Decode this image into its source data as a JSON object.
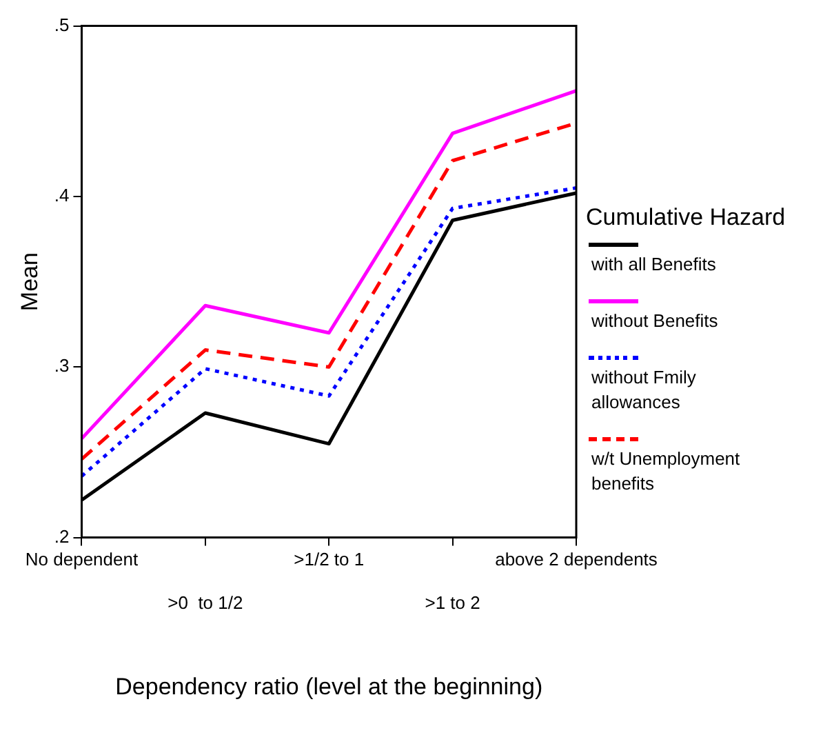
{
  "chart_data": {
    "type": "line",
    "xlabel": "Dependency ratio (level at the beginning)",
    "ylabel": "Mean",
    "legend_title": "Cumulative Hazard",
    "categories": [
      "No dependent",
      ">0  to 1/2",
      ">1/2 to 1",
      ">1 to 2",
      "above 2 dependents"
    ],
    "ylim": [
      0.2,
      0.5
    ],
    "yticks": [
      {
        "value": 0.2,
        "label": ".2"
      },
      {
        "value": 0.3,
        "label": ".3"
      },
      {
        "value": 0.4,
        "label": ".4"
      },
      {
        "value": 0.5,
        "label": ".5"
      }
    ],
    "grid": false,
    "legend": "right",
    "marker": "none",
    "series": [
      {
        "name": "with all Benefits",
        "color": "#000000",
        "line_style": "solid",
        "values": [
          0.222,
          0.273,
          0.255,
          0.386,
          0.402
        ]
      },
      {
        "name": "without Benefits",
        "color": "#ff00ff",
        "line_style": "solid",
        "values": [
          0.258,
          0.336,
          0.32,
          0.437,
          0.462
        ]
      },
      {
        "name": "without Fmily allowances",
        "color": "#0000ff",
        "line_style": "dotted",
        "values": [
          0.236,
          0.299,
          0.283,
          0.393,
          0.405
        ]
      },
      {
        "name": "w/t Unemployment benefits",
        "color": "#ff0000",
        "line_style": "dashed",
        "values": [
          0.246,
          0.31,
          0.3,
          0.421,
          0.443
        ]
      }
    ]
  }
}
